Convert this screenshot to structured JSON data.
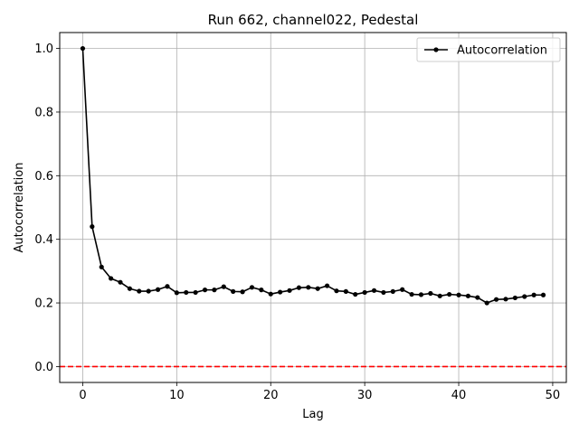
{
  "chart_data": {
    "type": "line",
    "title": "Run 662, channel022, Pedestal",
    "xlabel": "Lag",
    "ylabel": "Autocorrelation",
    "xlim": [
      -2.45,
      51.45
    ],
    "ylim": [
      -0.05,
      1.05
    ],
    "xticks": [
      0,
      10,
      20,
      30,
      40,
      50
    ],
    "yticks": [
      0.0,
      0.2,
      0.4,
      0.6,
      0.8,
      1.0
    ],
    "xtick_labels": [
      "0",
      "10",
      "20",
      "30",
      "40",
      "50"
    ],
    "ytick_labels": [
      "0.0",
      "0.2",
      "0.4",
      "0.6",
      "0.8",
      "1.0"
    ],
    "grid": true,
    "legend_position": "top-right",
    "series": [
      {
        "name": "Autocorrelation",
        "color": "#000000",
        "marker": "circle",
        "x": [
          0,
          1,
          2,
          3,
          4,
          5,
          6,
          7,
          8,
          9,
          10,
          11,
          12,
          13,
          14,
          15,
          16,
          17,
          18,
          19,
          20,
          21,
          22,
          23,
          24,
          25,
          26,
          27,
          28,
          29,
          30,
          31,
          32,
          33,
          34,
          35,
          36,
          37,
          38,
          39,
          40,
          41,
          42,
          43,
          44,
          45,
          46,
          47,
          48,
          49
        ],
        "values": [
          1.0,
          0.44,
          0.313,
          0.277,
          0.265,
          0.245,
          0.237,
          0.237,
          0.242,
          0.252,
          0.232,
          0.233,
          0.233,
          0.241,
          0.241,
          0.251,
          0.236,
          0.235,
          0.249,
          0.241,
          0.228,
          0.234,
          0.239,
          0.248,
          0.249,
          0.245,
          0.254,
          0.238,
          0.236,
          0.227,
          0.233,
          0.239,
          0.233,
          0.236,
          0.242,
          0.227,
          0.226,
          0.23,
          0.222,
          0.227,
          0.225,
          0.222,
          0.217,
          0.2,
          0.211,
          0.212,
          0.216,
          0.22,
          0.225,
          0.225
        ]
      }
    ],
    "reference_line": {
      "y": 0.0,
      "color": "#ff0000",
      "style": "dashed"
    }
  }
}
